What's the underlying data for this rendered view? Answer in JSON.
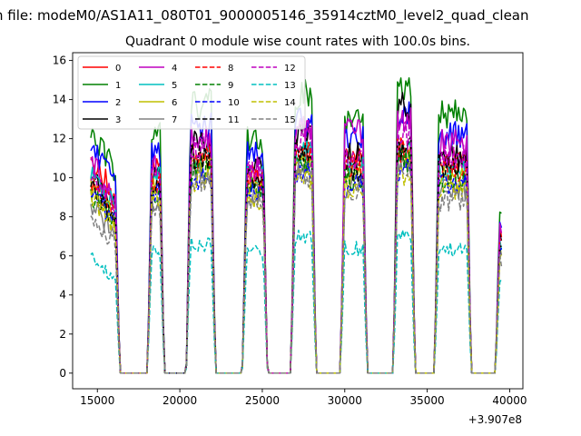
{
  "chart_data": {
    "type": "line",
    "suptitle": "n file: modeM0/AS1A11_080T01_9000005146_35914cztM0_level2_quad_clean",
    "title": "Quadrant 0 module wise count rates with 100.0s bins.",
    "xlabel": "",
    "ylabel": "",
    "x_offset_label": "+3.907e8",
    "xlim": [
      13500,
      40800
    ],
    "ylim": [
      -0.8,
      16.4
    ],
    "x_ticks": [
      15000,
      20000,
      25000,
      30000,
      35000,
      40000
    ],
    "x_tick_labels": [
      "15000",
      "20000",
      "25000",
      "30000",
      "35000",
      "40000"
    ],
    "y_ticks": [
      0,
      2,
      4,
      6,
      8,
      10,
      12,
      14,
      16
    ],
    "y_tick_labels": [
      "0",
      "2",
      "4",
      "6",
      "8",
      "10",
      "12",
      "14",
      "16"
    ],
    "grid": false,
    "legend_position": "top-left",
    "legend_columns": 4,
    "segments": [
      [
        14600,
        16100
      ],
      [
        18300,
        18800
      ],
      [
        20650,
        21900
      ],
      [
        24050,
        25050
      ],
      [
        27000,
        28000
      ],
      [
        30000,
        31100
      ],
      [
        33200,
        34000
      ],
      [
        35700,
        37400
      ],
      [
        39400,
        39500
      ]
    ],
    "series": [
      {
        "name": "0",
        "color": "#ff0000",
        "dash": "solid",
        "levels": [
          11.0,
          10.6,
          11.2,
          10.1,
          11.4,
          10.9,
          11.6,
          10.8,
          7.2
        ]
      },
      {
        "name": "1",
        "color": "#008000",
        "dash": "solid",
        "levels": [
          12.4,
          12.1,
          13.8,
          12.0,
          14.2,
          12.9,
          14.4,
          13.3,
          8.4
        ]
      },
      {
        "name": "2",
        "color": "#0000ff",
        "dash": "solid",
        "levels": [
          11.6,
          11.4,
          12.6,
          11.2,
          12.8,
          12.0,
          13.2,
          12.2,
          7.8
        ]
      },
      {
        "name": "3",
        "color": "#000000",
        "dash": "solid",
        "levels": [
          10.4,
          10.2,
          11.8,
          10.8,
          12.2,
          11.2,
          13.6,
          11.0,
          7.0
        ]
      },
      {
        "name": "4",
        "color": "#bf00bf",
        "dash": "solid",
        "levels": [
          10.8,
          10.5,
          12.2,
          10.6,
          12.6,
          12.4,
          13.0,
          11.8,
          7.4
        ]
      },
      {
        "name": "5",
        "color": "#00bfbf",
        "dash": "solid",
        "levels": [
          10.2,
          10.0,
          11.0,
          10.0,
          11.2,
          10.6,
          11.4,
          10.4,
          6.6
        ]
      },
      {
        "name": "6",
        "color": "#bfbf00",
        "dash": "solid",
        "levels": [
          9.6,
          9.4,
          10.6,
          9.5,
          10.8,
          10.1,
          11.0,
          10.0,
          6.4
        ]
      },
      {
        "name": "7",
        "color": "#808080",
        "dash": "solid",
        "levels": [
          8.6,
          8.8,
          10.2,
          9.2,
          10.4,
          9.8,
          10.8,
          9.4,
          6.2
        ]
      },
      {
        "name": "8",
        "color": "#ff0000",
        "dash": "dashed",
        "levels": [
          10.0,
          9.8,
          11.0,
          9.9,
          11.2,
          10.4,
          11.4,
          10.4,
          6.8
        ]
      },
      {
        "name": "9",
        "color": "#008000",
        "dash": "dashed",
        "levels": [
          9.2,
          9.0,
          10.4,
          9.4,
          10.6,
          9.9,
          10.9,
          9.8,
          6.4
        ]
      },
      {
        "name": "10",
        "color": "#0000ff",
        "dash": "dashed",
        "levels": [
          9.4,
          9.2,
          10.0,
          9.2,
          10.2,
          9.6,
          10.4,
          9.6,
          6.2
        ]
      },
      {
        "name": "11",
        "color": "#000000",
        "dash": "dashed",
        "levels": [
          9.6,
          9.6,
          11.0,
          10.0,
          11.4,
          10.4,
          11.6,
          10.6,
          6.6
        ]
      },
      {
        "name": "12",
        "color": "#bf00bf",
        "dash": "dashed",
        "levels": [
          10.4,
          10.3,
          11.6,
          10.4,
          12.0,
          10.8,
          12.2,
          11.0,
          7.0
        ]
      },
      {
        "name": "13",
        "color": "#00bfbf",
        "dash": "dashed",
        "levels": [
          5.9,
          6.2,
          6.6,
          6.2,
          6.9,
          6.4,
          7.0,
          6.3,
          4.6
        ]
      },
      {
        "name": "14",
        "color": "#bfbf00",
        "dash": "dashed",
        "levels": [
          9.0,
          8.8,
          9.8,
          8.9,
          10.0,
          9.4,
          10.2,
          9.3,
          6.0
        ]
      },
      {
        "name": "15",
        "color": "#808080",
        "dash": "dashed",
        "levels": [
          8.0,
          8.4,
          9.8,
          8.8,
          10.0,
          9.4,
          10.4,
          8.8,
          5.8
        ]
      }
    ]
  }
}
